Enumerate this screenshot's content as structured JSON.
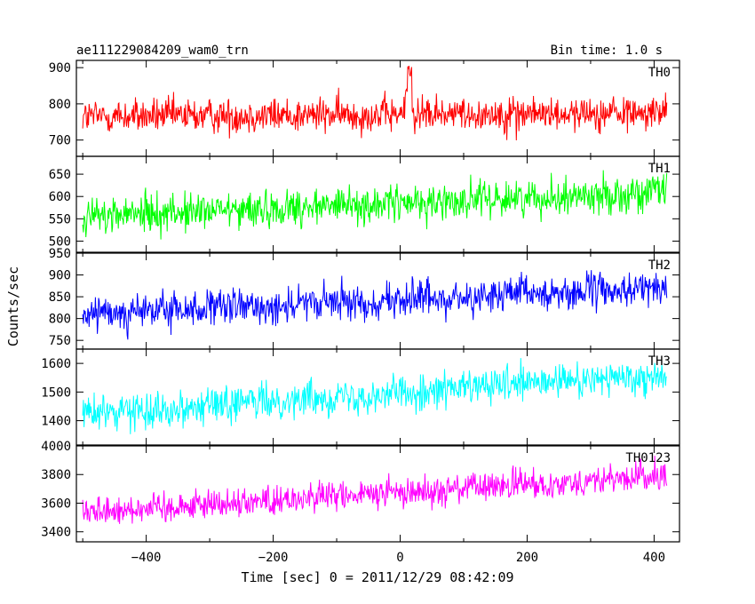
{
  "header": {
    "left": "ae111229084209_wam0_trn",
    "right": "Bin time: 1.0 s"
  },
  "axes": {
    "xlabel": "Time [sec] 0 = 2011/12/29 08:42:09",
    "ylabel": "Counts/sec"
  },
  "chart_data": {
    "type": "line",
    "shared_x": true,
    "xlim": [
      -510,
      440
    ],
    "x_ticks": [
      -400,
      -200,
      0,
      200,
      400
    ],
    "x_tick_labels": [
      "−400",
      "−200",
      "0",
      "200",
      "400"
    ],
    "x_range": [
      -500,
      420
    ],
    "bin_time_s": 1.0,
    "panels": [
      {
        "name": "TH0",
        "color": "#ff0000",
        "ylim": [
          655,
          920
        ],
        "y_ticks": [
          700,
          800,
          900
        ],
        "mean_start": 765,
        "mean_end": 775,
        "noise": 35,
        "dip_at_x": 15,
        "spike_value": 905
      },
      {
        "name": "TH1",
        "color": "#00ff00",
        "ylim": [
          475,
          690
        ],
        "y_ticks": [
          500,
          550,
          600,
          650
        ],
        "mean_start": 555,
        "mean_end": 610,
        "noise": 30
      },
      {
        "name": "TH2",
        "color": "#0000ff",
        "ylim": [
          730,
          950
        ],
        "y_ticks": [
          750,
          800,
          850,
          900,
          950
        ],
        "mean_start": 810,
        "mean_end": 870,
        "noise": 30
      },
      {
        "name": "TH3",
        "color": "#00ffff",
        "ylim": [
          1315,
          1650
        ],
        "y_ticks": [
          1400,
          1500,
          1600
        ],
        "mean_start": 1425,
        "mean_end": 1560,
        "noise": 45
      },
      {
        "name": "TH0123",
        "color": "#ff00ff",
        "ylim": [
          3330,
          4000
        ],
        "y_ticks": [
          3400,
          3600,
          3800,
          4000
        ],
        "mean_start": 3540,
        "mean_end": 3790,
        "noise": 75
      }
    ]
  }
}
